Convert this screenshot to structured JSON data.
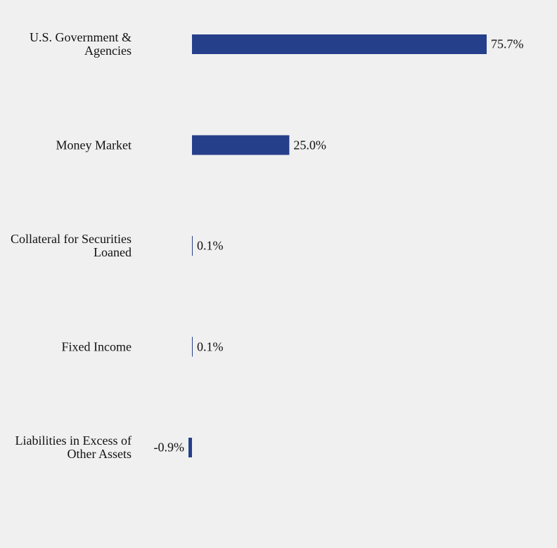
{
  "chart_data": {
    "type": "hbar",
    "categories": [
      "U.S. Government & Agencies",
      "Money Market",
      "Collateral for Securities Loaned",
      "Fixed Income",
      "Liabilities in Excess of Other Assets"
    ],
    "values": [
      75.7,
      25.0,
      0.1,
      0.1,
      -0.9
    ],
    "value_labels": [
      "75.7%",
      "25.0%",
      "0.1%",
      "0.1%",
      "-0.9%"
    ],
    "color": "#253f8b"
  }
}
